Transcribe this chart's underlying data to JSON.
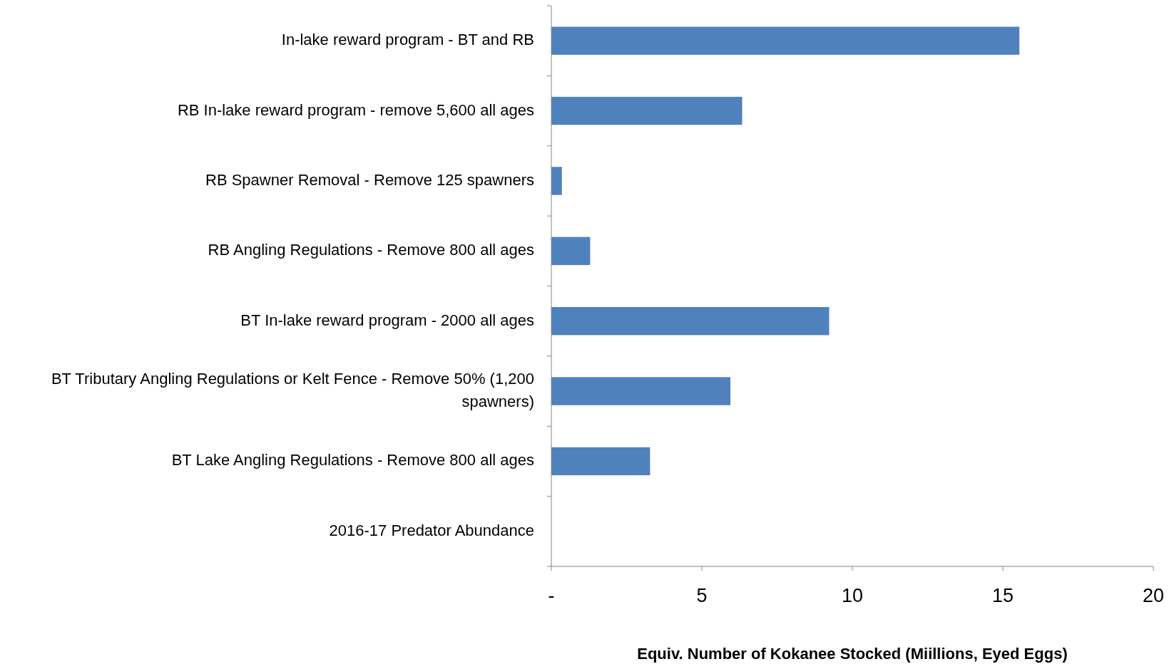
{
  "chart_data": {
    "type": "bar",
    "orientation": "horizontal",
    "xlabel": "Equiv. Number of Kokanee Stocked (Miillions, Eyed Eggs)",
    "categories": [
      "In-lake reward program - BT and RB",
      "RB In-lake reward program - remove 5,600 all ages",
      "RB Spawner Removal - Remove 125 spawners",
      "RB Angling Regulations - Remove 800 all ages",
      "BT In-lake reward program - 2000 all ages",
      "BT Tributary Angling Regulations or Kelt Fence - Remove 50% (1,200 spawners)",
      "BT Lake Angling Regulations - Remove 800 all ages",
      "2016-17 Predator Abundance"
    ],
    "values": [
      15.55,
      6.34,
      0.35,
      1.29,
      9.23,
      5.95,
      3.28,
      0
    ],
    "color": "#4f81bd",
    "xlim": [
      0,
      20
    ],
    "xticks": [
      {
        "value": 0,
        "label": "-"
      },
      5,
      10,
      15,
      20
    ],
    "grid": false
  }
}
